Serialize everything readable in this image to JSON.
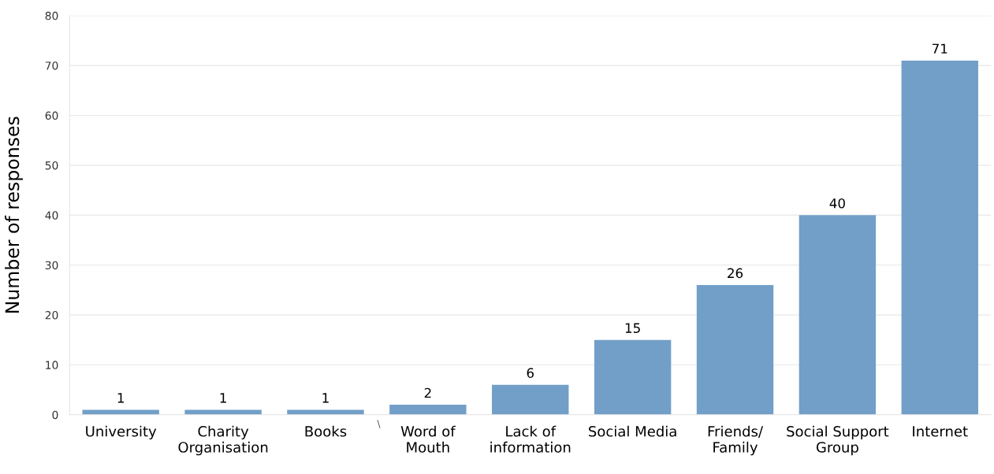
{
  "chart_data": {
    "type": "bar",
    "ylabel": "Number of responses",
    "categories": [
      "University",
      "Charity\nOrganisation",
      "Books",
      "Word of\nMouth",
      "Lack of\ninformation",
      "Social Media",
      "Friends/\nFamily",
      "Social Support\nGroup",
      "Internet"
    ],
    "values": [
      1,
      1,
      1,
      2,
      6,
      15,
      26,
      40,
      71
    ],
    "color": "#729fc8",
    "ylim": [
      0,
      80
    ],
    "yticks": [
      0,
      10,
      20,
      30,
      40,
      50,
      60,
      70,
      80
    ],
    "grid": "y",
    "data_labels": true,
    "annotations": [
      "\\"
    ]
  }
}
